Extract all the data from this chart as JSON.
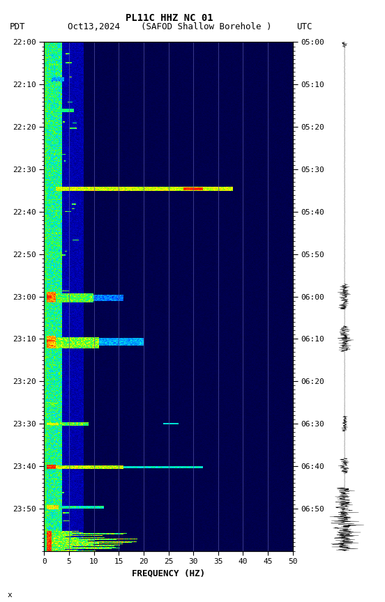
{
  "title_line1": "PL11C HHZ NC 01",
  "title_line2": "Oct13,2024    (SAFOD Shallow Borehole )",
  "left_label": "PDT",
  "right_label": "UTC",
  "freq_min": 0,
  "freq_max": 50,
  "freq_ticks": [
    0,
    5,
    10,
    15,
    20,
    25,
    30,
    35,
    40,
    45,
    50
  ],
  "freq_label": "FREQUENCY (HZ)",
  "time_left_labels": [
    "22:00",
    "22:10",
    "22:20",
    "22:30",
    "22:40",
    "22:50",
    "23:00",
    "23:10",
    "23:20",
    "23:30",
    "23:40",
    "23:50"
  ],
  "time_right_labels": [
    "05:00",
    "05:10",
    "05:20",
    "05:30",
    "05:40",
    "05:50",
    "06:00",
    "06:10",
    "06:20",
    "06:30",
    "06:40",
    "06:50"
  ],
  "time_steps": 12,
  "bg_color": "#000066",
  "figsize": [
    5.52,
    8.64
  ],
  "dpi": 100,
  "vline_freqs": [
    5,
    10,
    15,
    20,
    25,
    30,
    35,
    40,
    45
  ],
  "note": "x"
}
